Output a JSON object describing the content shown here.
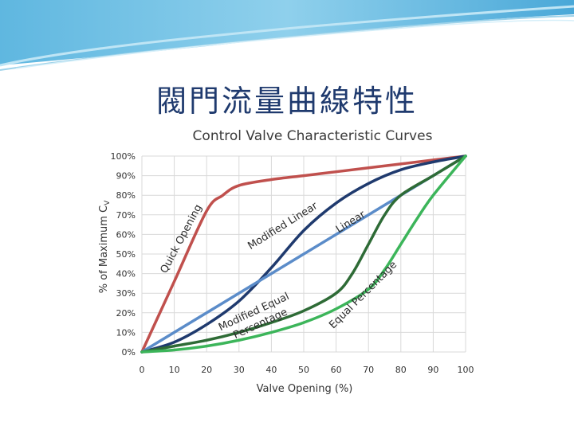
{
  "slide": {
    "title": "閥門流量曲線特性"
  },
  "chart_data": {
    "type": "line",
    "title": "Control Valve Characteristic Curves",
    "xlabel": "Valve Opening (%)",
    "ylabel": "% of Maximum C",
    "ylabel_sub": "V",
    "xlim": [
      0,
      100
    ],
    "ylim": [
      0,
      100
    ],
    "x_ticks": [
      0,
      10,
      20,
      30,
      40,
      50,
      60,
      70,
      80,
      90,
      100
    ],
    "x_tick_labels": [
      "0",
      "10",
      "20",
      "30",
      "40",
      "50",
      "60",
      "70",
      "80",
      "90",
      "100"
    ],
    "y_ticks": [
      0,
      10,
      20,
      30,
      40,
      50,
      60,
      70,
      80,
      90,
      100
    ],
    "y_tick_labels": [
      "0%",
      "10%",
      "20%",
      "30%",
      "40%",
      "50%",
      "60%",
      "70%",
      "80%",
      "90%",
      "100%"
    ],
    "grid": true,
    "series": [
      {
        "name": "Quick Opening",
        "color": "#c0504d",
        "x": [
          0,
          10,
          20,
          25,
          30,
          40,
          50,
          60,
          70,
          80,
          90,
          100
        ],
        "y": [
          0,
          36,
          72,
          80,
          85,
          88,
          90,
          92,
          94,
          96,
          98,
          100
        ]
      },
      {
        "name": "Modified Linear",
        "color": "#1f3a6e",
        "x": [
          0,
          10,
          20,
          30,
          40,
          50,
          60,
          70,
          80,
          90,
          100
        ],
        "y": [
          0,
          5,
          14,
          26,
          43,
          62,
          76,
          86,
          93,
          97,
          100
        ]
      },
      {
        "name": "Linear",
        "color": "#5b8cc9",
        "x": [
          0,
          100
        ],
        "y": [
          0,
          100
        ]
      },
      {
        "name": "Modified Equal Percentage",
        "color": "#2e6b36",
        "x": [
          0,
          10,
          20,
          30,
          40,
          50,
          60,
          65,
          70,
          75,
          80,
          90,
          100
        ],
        "y": [
          0,
          3,
          6,
          10,
          15,
          21,
          30,
          40,
          55,
          70,
          80,
          90,
          100
        ]
      },
      {
        "name": "Equal Percentage",
        "color": "#3cb55a",
        "x": [
          0,
          10,
          20,
          30,
          40,
          50,
          60,
          70,
          75,
          80,
          85,
          90,
          100
        ],
        "y": [
          0,
          1,
          3,
          6,
          10,
          15,
          22,
          32,
          42,
          55,
          68,
          80,
          100
        ]
      }
    ],
    "annotations": [
      {
        "id": "quick",
        "text": "Quick Opening",
        "x": 13,
        "y": 57,
        "angle": -62
      },
      {
        "id": "modlinear",
        "text": "Modified Linear",
        "x": 44,
        "y": 63,
        "angle": -32
      },
      {
        "id": "linear",
        "text": "Linear",
        "x": 65,
        "y": 65,
        "angle": -32
      },
      {
        "id": "modeqpct1",
        "text": "Modified Equal",
        "x": 35,
        "y": 19,
        "angle": -25
      },
      {
        "id": "modeqpct2",
        "text": "Percentage",
        "x": 37,
        "y": 13,
        "angle": -25
      },
      {
        "id": "eqpct",
        "text": "Equal Percentage",
        "x": 69,
        "y": 28,
        "angle": -45
      }
    ]
  }
}
